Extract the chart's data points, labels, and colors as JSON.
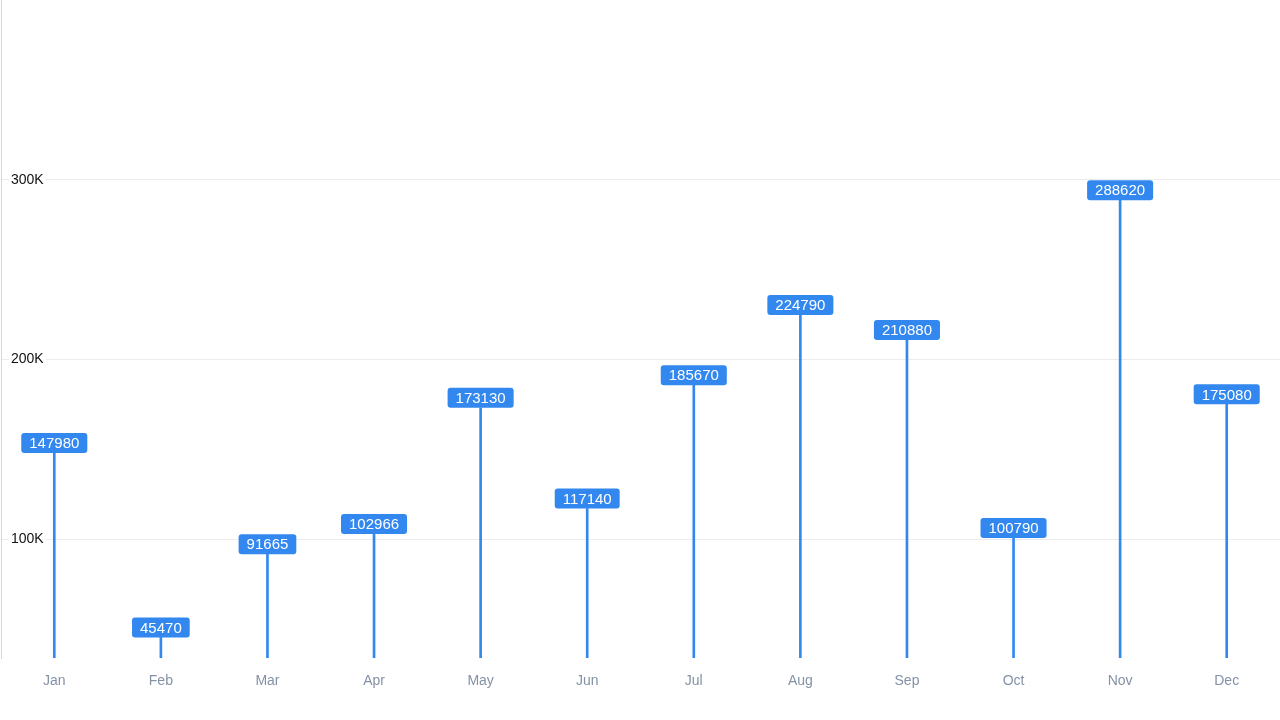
{
  "chart_data": {
    "type": "bar",
    "categories": [
      "Jan",
      "Feb",
      "Mar",
      "Apr",
      "May",
      "Jun",
      "Jul",
      "Aug",
      "Sep",
      "Oct",
      "Nov",
      "Dec"
    ],
    "values": [
      147980,
      45470,
      91665,
      102966,
      173130,
      117140,
      185670,
      224790,
      210880,
      100790,
      288620,
      175080
    ],
    "color": "#3388f0",
    "ylim": [
      34000,
      400000
    ],
    "yticks": [
      {
        "value": 100000,
        "label": "100K"
      },
      {
        "value": 200000,
        "label": "200K"
      },
      {
        "value": 300000,
        "label": "300K"
      }
    ],
    "grid": "y",
    "data_labels": true
  }
}
